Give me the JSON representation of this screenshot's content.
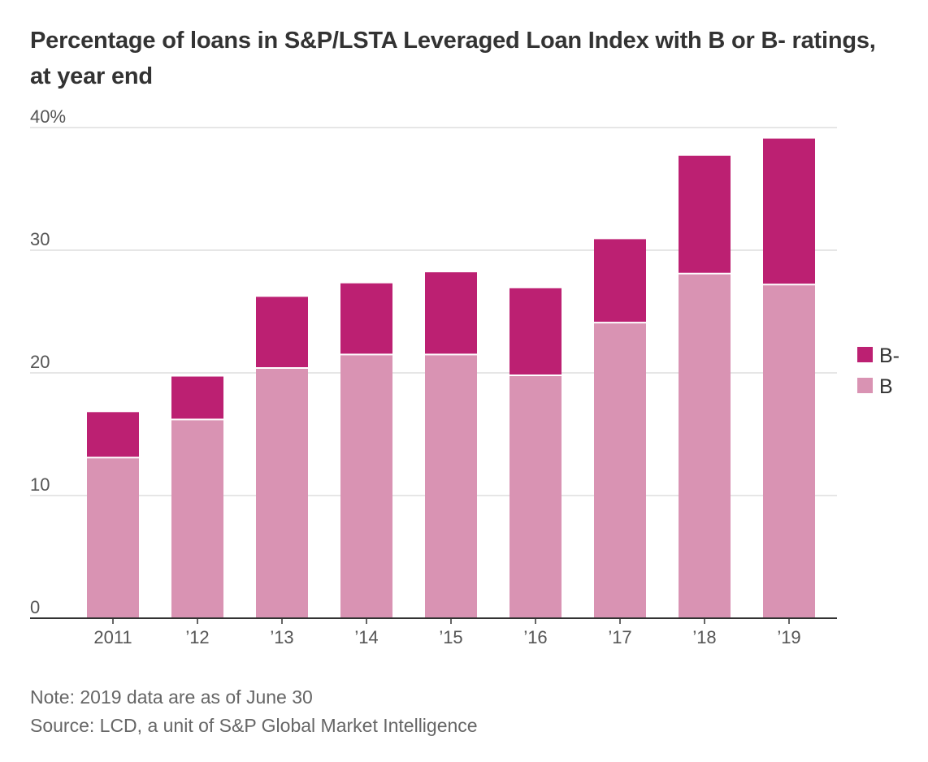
{
  "chart_data": {
    "type": "bar",
    "stacked": true,
    "title": "Percentage of loans in S&P/LSTA Leveraged Loan Index with B or B- ratings, at year end",
    "categories": [
      "2011",
      "’12",
      "’13",
      "’14",
      "’15",
      "’16",
      "’17",
      "’18",
      "’19"
    ],
    "series": [
      {
        "name": "B",
        "color": "#d993b3",
        "values": [
          13.1,
          16.2,
          20.4,
          21.5,
          21.5,
          19.8,
          24.1,
          28.1,
          27.2
        ]
      },
      {
        "name": "B-",
        "color": "#bc2072",
        "values": [
          3.7,
          3.5,
          5.8,
          5.8,
          6.7,
          7.1,
          6.8,
          9.6,
          11.9
        ]
      }
    ],
    "ylim": [
      0,
      40
    ],
    "yticks": [
      0,
      10,
      20,
      30,
      40
    ],
    "ytick_labels": [
      "0",
      "10",
      "20",
      "30",
      "40%"
    ],
    "xlabel": "",
    "ylabel": "",
    "grid": true,
    "legend": {
      "placement": "right",
      "entries": [
        "B-",
        "B"
      ]
    }
  },
  "footer": {
    "note": "Note: 2019 data are as of June 30",
    "source": "Source: LCD, a unit of S&P Global Market Intelligence"
  },
  "colors": {
    "grid": "#dddddd",
    "baseline": "#333333",
    "text": "#333333",
    "muted_text": "#666666"
  }
}
